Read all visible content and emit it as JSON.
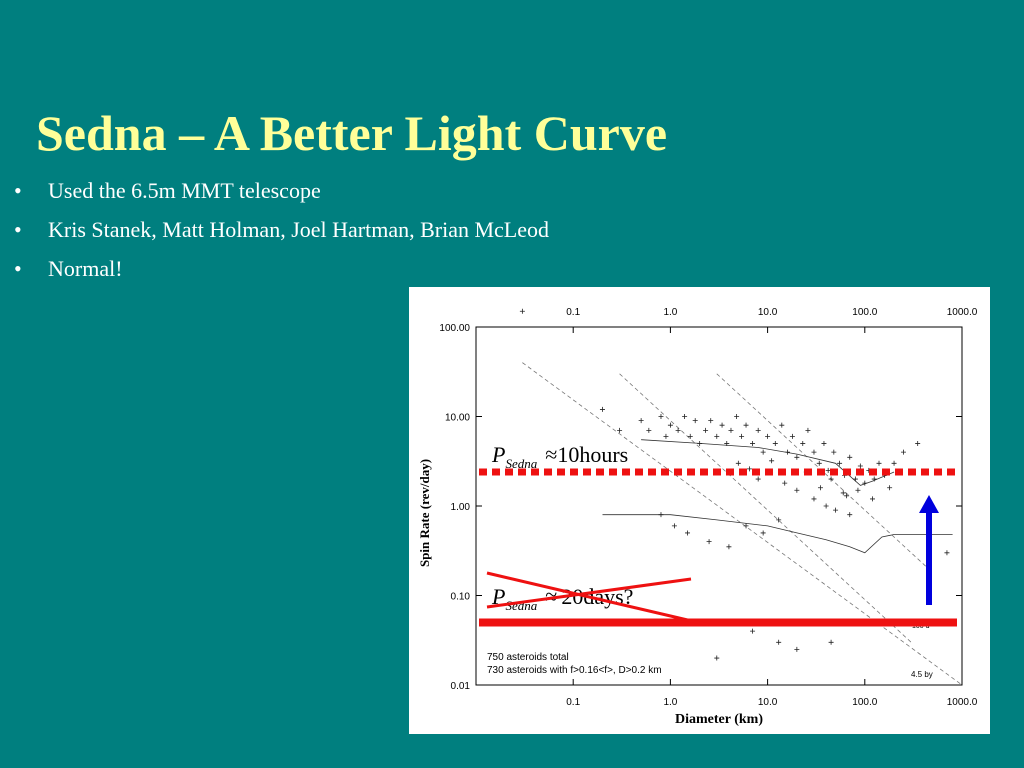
{
  "slide": {
    "title": "Sedna – A Better Light Curve",
    "bullet_glyph": "•",
    "bullets": [
      "Used the 6.5m MMT telescope",
      "Kris Stanek, Matt Holman, Joel Hartman, Brian McLeod",
      "Normal!"
    ],
    "colors": {
      "background": "#007f7f",
      "title": "#ffff99",
      "text": "#ffffff"
    }
  },
  "chart_data": {
    "type": "scatter",
    "xlabel": "Diameter (km)",
    "ylabel": "Spin Rate (rev/day)",
    "xscale": "log",
    "yscale": "log",
    "xlim": [
      0.01,
      1000.0
    ],
    "ylim": [
      0.01,
      100.0
    ],
    "x_ticks": [
      "0.1",
      "1.0",
      "10.0",
      "100.0",
      "1000.0"
    ],
    "y_ticks": [
      "100.00",
      "10.00",
      "1.00",
      "0.10",
      "0.01"
    ],
    "notes": [
      "750 asteroids total",
      "730 asteroids with f>0.16<f>, D>0.2 km"
    ],
    "line_labels": [
      "100 d",
      "4.5 by"
    ],
    "annotations": {
      "sedna_symbol": "P",
      "sedna_subscript": "Sedna",
      "approx_symbol": "≈",
      "new_period": "10hours",
      "old_period": "20days?"
    },
    "sedna_new_rate": 2.4,
    "sedna_old_rate": 0.05,
    "points": [
      [
        0.03,
        150
      ],
      [
        0.2,
        12
      ],
      [
        0.3,
        7
      ],
      [
        0.5,
        9
      ],
      [
        0.6,
        7
      ],
      [
        0.8,
        10
      ],
      [
        0.9,
        6
      ],
      [
        1.0,
        8
      ],
      [
        1.2,
        7
      ],
      [
        1.4,
        10
      ],
      [
        1.6,
        6
      ],
      [
        1.8,
        9
      ],
      [
        2.0,
        5
      ],
      [
        2.3,
        7
      ],
      [
        2.6,
        9
      ],
      [
        3.0,
        6
      ],
      [
        3.4,
        8
      ],
      [
        3.8,
        5
      ],
      [
        4.2,
        7
      ],
      [
        4.8,
        10
      ],
      [
        5.4,
        6
      ],
      [
        6.0,
        8
      ],
      [
        7.0,
        5
      ],
      [
        8.0,
        7
      ],
      [
        9.0,
        4
      ],
      [
        10,
        6
      ],
      [
        12,
        5
      ],
      [
        14,
        8
      ],
      [
        16,
        4
      ],
      [
        18,
        6
      ],
      [
        20,
        3.5
      ],
      [
        23,
        5
      ],
      [
        26,
        7
      ],
      [
        30,
        4
      ],
      [
        34,
        3
      ],
      [
        38,
        5
      ],
      [
        42,
        2.5
      ],
      [
        48,
        4
      ],
      [
        55,
        3
      ],
      [
        62,
        2.2
      ],
      [
        70,
        3.5
      ],
      [
        80,
        2
      ],
      [
        90,
        2.8
      ],
      [
        100,
        1.8
      ],
      [
        110,
        2.5
      ],
      [
        125,
        2
      ],
      [
        140,
        3
      ],
      [
        160,
        2.2
      ],
      [
        180,
        1.6
      ],
      [
        200,
        3
      ],
      [
        250,
        4
      ],
      [
        300,
        2.4
      ],
      [
        350,
        5
      ],
      [
        20,
        1.5
      ],
      [
        30,
        1.2
      ],
      [
        40,
        1
      ],
      [
        50,
        0.9
      ],
      [
        60,
        1.4
      ],
      [
        70,
        0.8
      ],
      [
        8,
        2
      ],
      [
        15,
        1.8
      ],
      [
        25,
        2.4
      ],
      [
        35,
        1.6
      ],
      [
        45,
        2
      ],
      [
        65,
        1.3
      ],
      [
        85,
        1.5
      ],
      [
        120,
        1.2
      ],
      [
        5,
        3
      ],
      [
        6.5,
        2.6
      ],
      [
        11,
        3.2
      ],
      [
        1.5,
        0.5
      ],
      [
        2.5,
        0.4
      ],
      [
        4,
        0.35
      ],
      [
        6,
        0.6
      ],
      [
        9,
        0.5
      ],
      [
        13,
        0.7
      ],
      [
        0.8,
        0.8
      ],
      [
        1.1,
        0.6
      ],
      [
        700,
        0.3
      ],
      [
        3,
        0.02
      ],
      [
        20,
        0.025
      ],
      [
        45,
        0.03
      ],
      [
        7,
        0.04
      ],
      [
        13,
        0.03
      ]
    ]
  }
}
